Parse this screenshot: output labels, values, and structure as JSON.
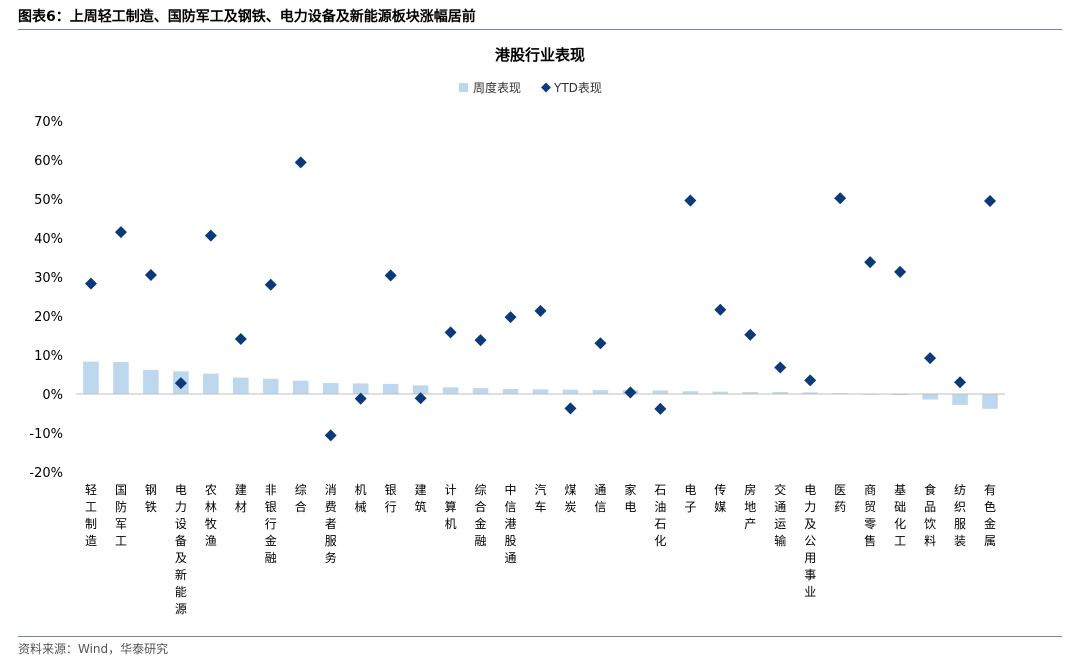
{
  "figure_header": "图表6：上周轻工制造、国防军工及钢铁、电力设备及新能源板块涨幅居前",
  "source_note": "资料来源：Wind，华泰研究",
  "colors": {
    "bar": "#bdd7ee",
    "marker": "#0b3a7a",
    "rule": "#6d86a8"
  },
  "chart_data": {
    "type": "bar",
    "title": "港股行业表现",
    "legend": {
      "position": "top-center",
      "items": [
        "周度表现",
        "YTD表现"
      ]
    },
    "xlabel": "",
    "ylabel": "",
    "ylim": [
      -20,
      70
    ],
    "yticks": [
      -20,
      -10,
      0,
      10,
      20,
      30,
      40,
      50,
      60,
      70
    ],
    "ytick_labels": [
      "-20%",
      "-10%",
      "0%",
      "10%",
      "20%",
      "30%",
      "40%",
      "50%",
      "60%",
      "70%"
    ],
    "grid": false,
    "categories": [
      "轻工制造",
      "国防军工",
      "钢铁",
      "电力设备及新能源",
      "农林牧渔",
      "建材",
      "非银行金融",
      "综合",
      "消费者服务",
      "机械",
      "银行",
      "建筑",
      "计算机",
      "综合金融",
      "中信港股通",
      "汽车",
      "煤炭",
      "通信",
      "家电",
      "石油石化",
      "电子",
      "传媒",
      "房地产",
      "交通运输",
      "电力及公用事业",
      "医药",
      "商贸零售",
      "基础化工",
      "食品饮料",
      "纺织服装",
      "有色金属"
    ],
    "series": [
      {
        "name": "周度表现",
        "kind": "bar",
        "values": [
          8.3,
          8.2,
          6.2,
          5.8,
          5.2,
          4.2,
          3.9,
          3.4,
          2.8,
          2.7,
          2.6,
          2.2,
          1.7,
          1.5,
          1.3,
          1.2,
          1.1,
          1.0,
          1.0,
          0.9,
          0.7,
          0.6,
          0.5,
          0.5,
          0.4,
          0.2,
          -0.2,
          -0.3,
          -1.4,
          -2.8,
          -3.8
        ]
      },
      {
        "name": "YTD表现",
        "kind": "scatter",
        "values": [
          28.3,
          41.5,
          30.5,
          2.8,
          40.6,
          14.1,
          28.0,
          59.4,
          -10.6,
          -1.2,
          30.4,
          -1.1,
          15.8,
          13.8,
          19.7,
          21.3,
          -3.7,
          13.0,
          0.4,
          -3.8,
          49.6,
          21.6,
          15.2,
          6.8,
          3.5,
          50.2,
          33.8,
          31.3,
          9.2,
          3.0,
          49.5
        ]
      }
    ]
  }
}
